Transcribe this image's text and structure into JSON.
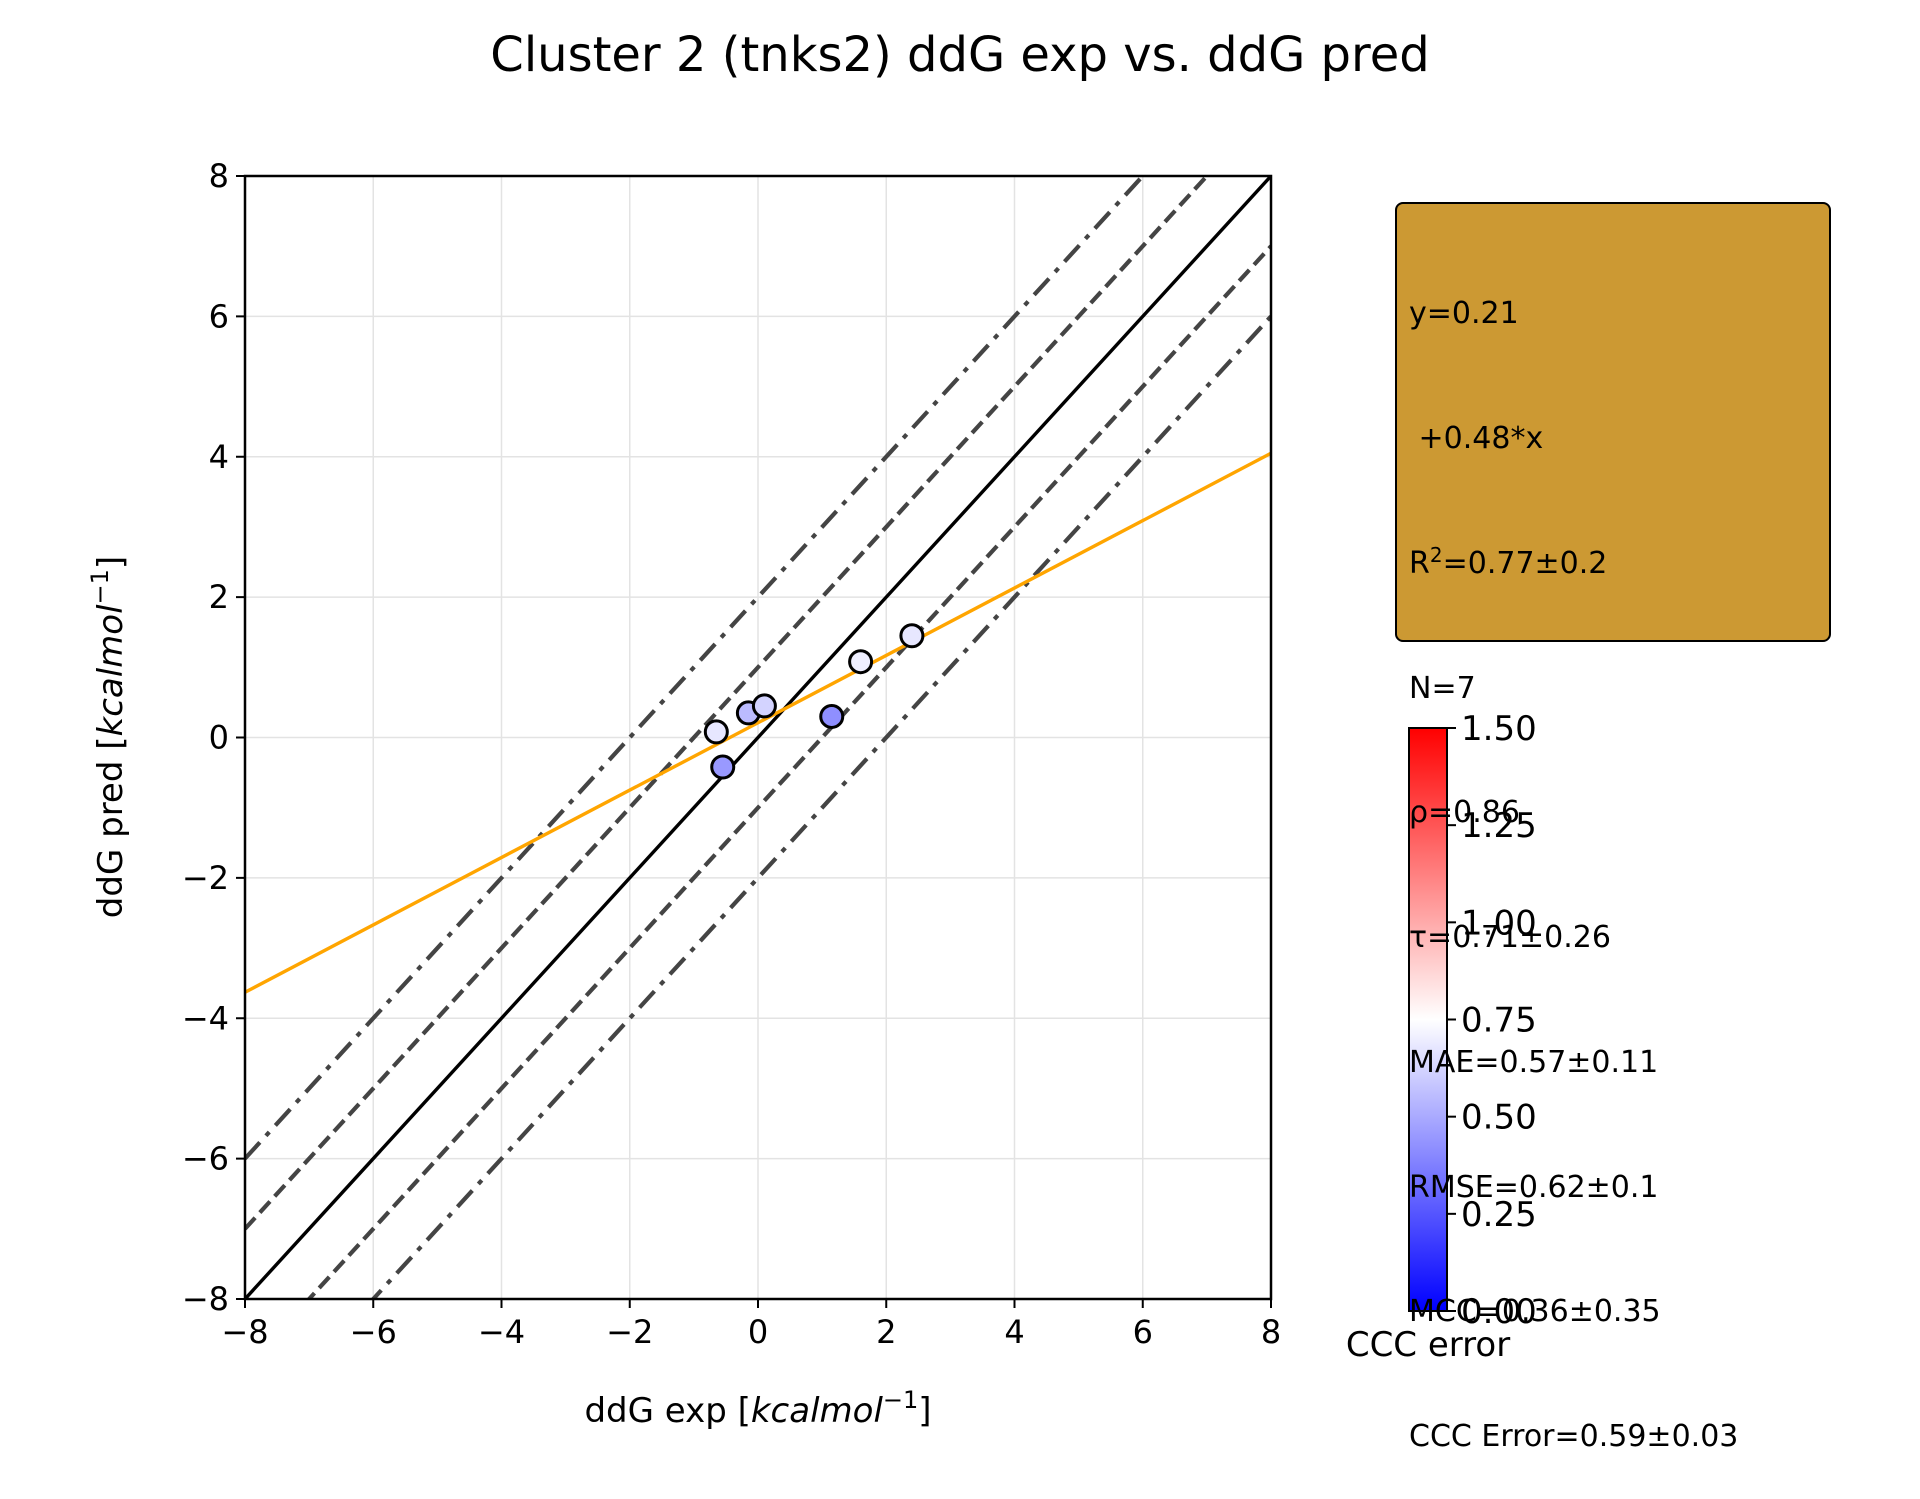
{
  "chart_data": {
    "type": "scatter",
    "title": "Cluster 2 (tnks2) ddG exp vs. ddG pred",
    "xlabel": {
      "prefix": "ddG exp [",
      "italic": "kcalmol",
      "sup": "−1",
      "suffix": "]"
    },
    "ylabel": {
      "prefix": "ddG pred [",
      "italic": "kcalmol",
      "sup": "−1",
      "suffix": "]"
    },
    "xlim": [
      -8,
      8
    ],
    "ylim": [
      -8,
      8
    ],
    "xticks": [
      -8,
      -6,
      -4,
      -2,
      0,
      2,
      4,
      6,
      8
    ],
    "yticks": [
      -8,
      -6,
      -4,
      -2,
      0,
      2,
      4,
      6,
      8
    ],
    "xtick_labels": [
      "−8",
      "−6",
      "−4",
      "−2",
      "0",
      "2",
      "4",
      "6",
      "8"
    ],
    "ytick_labels": [
      "−8",
      "−6",
      "−4",
      "−2",
      "0",
      "2",
      "4",
      "6",
      "8"
    ],
    "grid": true,
    "points": [
      {
        "x": -0.65,
        "y": 0.08,
        "ccc_error": 0.68
      },
      {
        "x": -0.55,
        "y": -0.42,
        "ccc_error": 0.45
      },
      {
        "x": -0.15,
        "y": 0.35,
        "ccc_error": 0.55
      },
      {
        "x": 0.1,
        "y": 0.45,
        "ccc_error": 0.62
      },
      {
        "x": 1.15,
        "y": 0.3,
        "ccc_error": 0.42
      },
      {
        "x": 1.6,
        "y": 1.08,
        "ccc_error": 0.7
      },
      {
        "x": 2.4,
        "y": 1.45,
        "ccc_error": 0.68
      }
    ],
    "fit_line": {
      "intercept": 0.21,
      "slope": 0.48,
      "color": "#ffa500"
    },
    "identity_line": {
      "color": "#000000"
    },
    "dashed_offsets": [
      1,
      -1
    ],
    "dashdot_offsets": [
      2,
      -2
    ],
    "guide_color": "#444444",
    "stats_box": {
      "background": "#cc9933",
      "lines": [
        {
          "text": "y=0.21"
        },
        {
          "text": " +0.48*x"
        },
        {
          "pre": "R",
          "sup": "2",
          "post": "=0.77±0.2"
        },
        {
          "text": "N=7"
        },
        {
          "text": "ρ=0.86"
        },
        {
          "text": "τ=0.71±0.26"
        },
        {
          "text": "MAE=0.57±0.11"
        },
        {
          "text": "RMSE=0.62±0.1"
        },
        {
          "text": "MCC=0.36±0.35"
        },
        {
          "text": "CCC Error=0.59±0.03"
        }
      ]
    },
    "colorbar": {
      "label": "CCC error",
      "range": [
        0,
        1.5
      ],
      "colors": [
        "#0000ff",
        "#ffffff",
        "#ff0000"
      ],
      "ticks": [
        0,
        0.25,
        0.5,
        0.75,
        1.0,
        1.25,
        1.5
      ],
      "tick_labels": [
        "0.00",
        "0.25",
        "0.50",
        "0.75",
        "1.00",
        "1.25",
        "1.50"
      ]
    }
  }
}
